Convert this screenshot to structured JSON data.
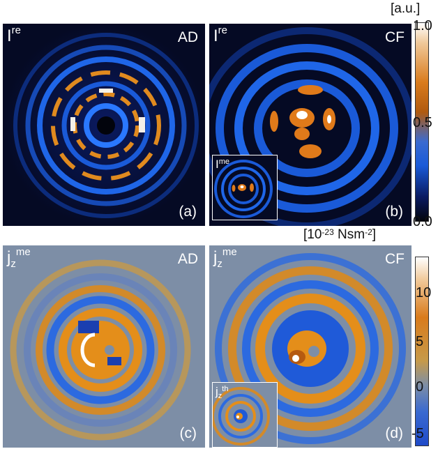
{
  "panels": [
    {
      "id": "a",
      "quantity": "I",
      "superscript": "re",
      "subscript": "",
      "method": "AD",
      "letter": "(a)"
    },
    {
      "id": "b",
      "quantity": "I",
      "superscript": "re",
      "subscript": "",
      "method": "CF",
      "letter": "(b)"
    },
    {
      "id": "c",
      "quantity": "j",
      "superscript": "me",
      "subscript": "z",
      "method": "AD",
      "letter": "(c)"
    },
    {
      "id": "d",
      "quantity": "j",
      "superscript": "me",
      "subscript": "z",
      "method": "CF",
      "letter": "(d)"
    }
  ],
  "insets": {
    "b": {
      "quantity": "I",
      "superscript": "me",
      "subscript": ""
    },
    "d": {
      "quantity": "j",
      "superscript": "th",
      "subscript": "z"
    }
  },
  "colorbar_top": {
    "unit": "[a.u.]",
    "ticks": [
      "1.0",
      "0.5",
      "0.0"
    ],
    "colors": [
      "#ffffff",
      "#e07a1a",
      "#1a6fe0",
      "#04071a"
    ]
  },
  "colorbar_bottom": {
    "unit_base": "[10",
    "unit_exp": "-23",
    "unit_rest": " Nsm",
    "unit_exp2": "-2",
    "unit_end": "]",
    "ticks": [
      "10",
      "5",
      "0",
      "-5"
    ],
    "colors": [
      "#ffffff",
      "#d97b1c",
      "#7d8aa0",
      "#1f62d6"
    ]
  }
}
